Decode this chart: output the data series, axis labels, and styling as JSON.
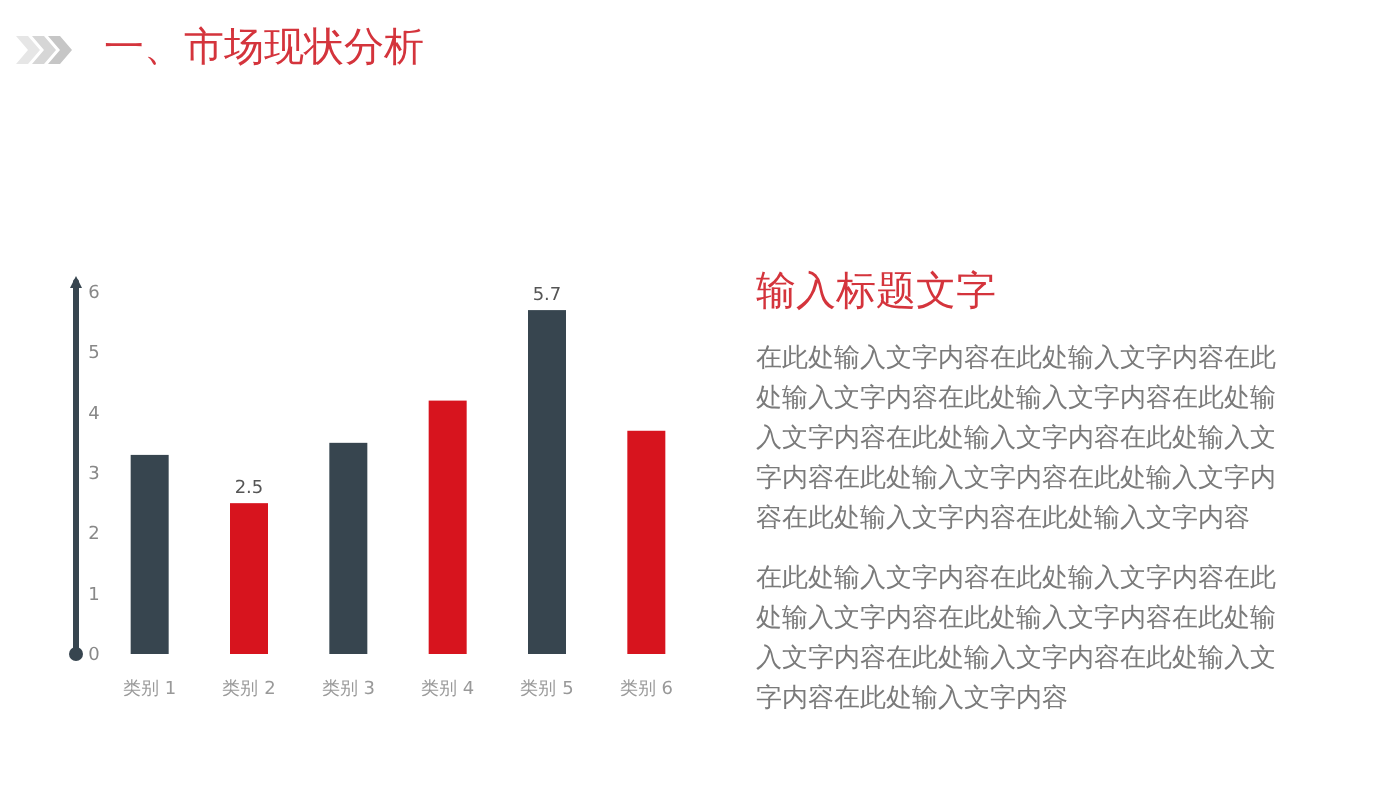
{
  "chart_data": {
    "type": "bar",
    "title": "一、市场现状分析",
    "categories": [
      "类别 1",
      "类别 2",
      "类别 3",
      "类别 4",
      "类别 5",
      "类别 6"
    ],
    "values": [
      3.3,
      2.5,
      3.5,
      4.2,
      5.7,
      3.7
    ],
    "colors": [
      "#37454f",
      "#d7141e",
      "#37454f",
      "#d7141e",
      "#37454f",
      "#d7141e"
    ],
    "value_labels": [
      null,
      "2.5",
      null,
      null,
      "5.7",
      null
    ],
    "ylim": [
      0,
      6
    ],
    "yticks": [
      0,
      1,
      2,
      3,
      4,
      5,
      6
    ],
    "grid": false,
    "annotations": [
      "输入标题文字",
      "在此处输入文字内容在此处输入文字内容在此处输入文字内容在此处输入文字内容在此处输入文字内容在此处输入文字内容在此处输入文字内容在此处输入文字内容在此处输入文字内容在此处输入文字内容在此处输入文字内容",
      "在此处输入文字内容在此处输入文字内容在此处输入文字内容在此处输入文字内容在此处输入文字内容在此处输入文字内容在此处输入文字内容在此处输入文字内容"
    ]
  }
}
